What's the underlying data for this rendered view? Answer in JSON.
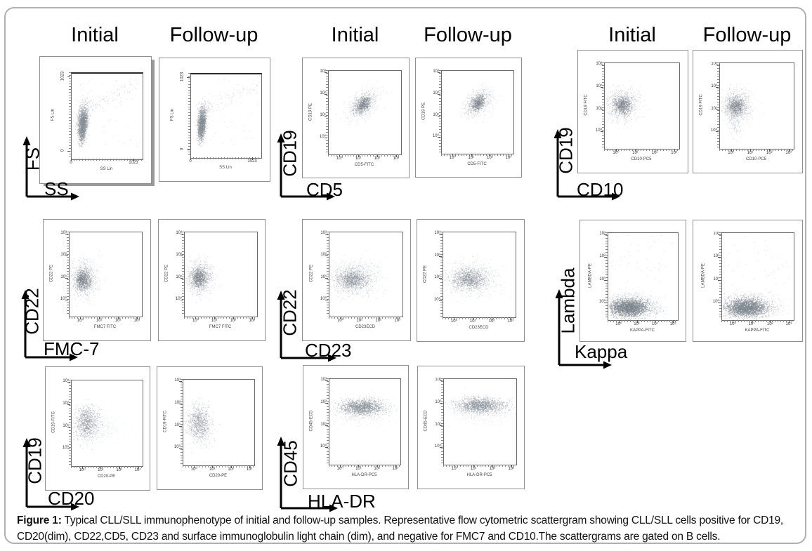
{
  "caption": {
    "label": "Figure 1:",
    "text": " Typical CLL/SLL immunophenotype of initial and follow-up samples. Representative flow cytometric scattergram showing CLL/SLL cells positive for CD19, CD20(dim), CD22,CD5, CD23 and surface immunoglobulin light chain (dim), and negative for FMC7 and CD10.The scattergrams are gated on B cells."
  },
  "column_headers": {
    "initial": "Initial",
    "followup": "Follow-up"
  },
  "colors": {
    "figure_border": "#b0b0b0",
    "plot_border": "#8f8f8f",
    "dot_gray": "#8a9199",
    "dense_gray": "#79818a",
    "text": "#000000"
  },
  "chart_data": [
    {
      "id": "fs-ss",
      "type": "scatter",
      "grid_row": 1,
      "grid_col": 1,
      "show_headers": true,
      "y_axis_label": "FS",
      "x_axis_label": "SS",
      "inner_y_label": "FS Lin",
      "inner_x_label": "SS Lin",
      "scale": "linear",
      "y_ticks": [
        "1023",
        "0"
      ],
      "x_ticks": [
        "0",
        "1023"
      ],
      "plots": [
        {
          "variant": "Initial",
          "seed": 101,
          "clusters": [
            {
              "type": "gauss",
              "cx": 0.155,
              "cy": 0.57,
              "sx": 0.032,
              "sy": 0.088,
              "rho": -0.25,
              "n": 1500,
              "color": "#848b93",
              "alpha": 0.5
            },
            {
              "type": "gauss",
              "cx": 0.14,
              "cy": 0.72,
              "sx": 0.026,
              "sy": 0.055,
              "rho": 0,
              "n": 260,
              "color": "#848b93",
              "alpha": 0.45
            },
            {
              "type": "gauss",
              "cx": 0.185,
              "cy": 0.42,
              "sx": 0.05,
              "sy": 0.065,
              "rho": -0.3,
              "n": 130,
              "color": "#98a0a8",
              "alpha": 0.4
            },
            {
              "type": "streak",
              "x1": 0.25,
              "y1": 0.4,
              "x2": 0.95,
              "y2": 0.1,
              "jitter": 0.045,
              "n": 85,
              "color": "#98a0a8",
              "alpha": 0.45
            },
            {
              "type": "uniform",
              "x1": 0.05,
              "y1": 0.05,
              "x2": 0.95,
              "y2": 0.85,
              "n": 55,
              "color": "#a7adb4",
              "alpha": 0.4
            }
          ]
        },
        {
          "variant": "Follow-up",
          "seed": 102,
          "clusters": [
            {
              "type": "gauss",
              "cx": 0.15,
              "cy": 0.57,
              "sx": 0.03,
              "sy": 0.085,
              "rho": -0.25,
              "n": 1300,
              "color": "#848b93",
              "alpha": 0.5
            },
            {
              "type": "gauss",
              "cx": 0.135,
              "cy": 0.71,
              "sx": 0.025,
              "sy": 0.05,
              "rho": 0,
              "n": 220,
              "color": "#848b93",
              "alpha": 0.45
            },
            {
              "type": "gauss",
              "cx": 0.18,
              "cy": 0.42,
              "sx": 0.05,
              "sy": 0.06,
              "rho": -0.3,
              "n": 110,
              "color": "#98a0a8",
              "alpha": 0.4
            },
            {
              "type": "streak",
              "x1": 0.25,
              "y1": 0.4,
              "x2": 0.95,
              "y2": 0.12,
              "jitter": 0.04,
              "n": 70,
              "color": "#9aa2aa",
              "alpha": 0.4
            },
            {
              "type": "uniform",
              "x1": 0.05,
              "y1": 0.05,
              "x2": 0.95,
              "y2": 0.85,
              "n": 45,
              "color": "#a7adb4",
              "alpha": 0.4
            }
          ]
        }
      ]
    },
    {
      "id": "cd19-cd5",
      "type": "scatter",
      "grid_row": 1,
      "grid_col": 2,
      "show_headers": true,
      "y_axis_label": "CD19",
      "x_axis_label": "CD5",
      "inner_y_label": "CD19 PE",
      "inner_x_label": "CD5-FITC",
      "scale": "log",
      "y_ticks": [
        "10³",
        "10²",
        "10¹",
        "10⁰"
      ],
      "x_ticks": [
        "10⁰",
        "10¹",
        "10²",
        "10³"
      ],
      "plots": [
        {
          "variant": "Initial",
          "seed": 201,
          "clusters": [
            {
              "type": "gauss",
              "cx": 0.47,
              "cy": 0.4,
              "sx": 0.1,
              "sy": 0.085,
              "rho": -0.45,
              "n": 750,
              "color": "#9aa1a9",
              "alpha": 0.33
            },
            {
              "type": "gauss",
              "cx": 0.47,
              "cy": 0.4,
              "sx": 0.055,
              "sy": 0.05,
              "rho": -0.45,
              "n": 600,
              "color": "#777f88",
              "alpha": 0.45
            }
          ]
        },
        {
          "variant": "Follow-up",
          "seed": 202,
          "clusters": [
            {
              "type": "gauss",
              "cx": 0.5,
              "cy": 0.385,
              "sx": 0.095,
              "sy": 0.08,
              "rho": -0.4,
              "n": 700,
              "color": "#9aa1a9",
              "alpha": 0.33
            },
            {
              "type": "gauss",
              "cx": 0.5,
              "cy": 0.385,
              "sx": 0.05,
              "sy": 0.048,
              "rho": -0.4,
              "n": 550,
              "color": "#777f88",
              "alpha": 0.45
            }
          ]
        }
      ]
    },
    {
      "id": "cd19-cd10",
      "type": "scatter",
      "grid_row": 1,
      "grid_col": 3,
      "show_headers": true,
      "y_axis_label": "CD19",
      "x_axis_label": "CD10",
      "inner_y_label": "CD19 FITC",
      "inner_x_label": "CD10-PC5",
      "scale": "log",
      "y_ticks": [
        "10³",
        "10²",
        "10¹",
        "10⁰"
      ],
      "x_ticks": [
        "10⁰",
        "10¹",
        "10²",
        "10³"
      ],
      "plots": [
        {
          "variant": "Initial",
          "seed": 301,
          "clusters": [
            {
              "type": "gauss",
              "cx": 0.24,
              "cy": 0.48,
              "sx": 0.105,
              "sy": 0.09,
              "rho": 0,
              "n": 950,
              "color": "#9aa1a9",
              "alpha": 0.36
            },
            {
              "type": "gauss",
              "cx": 0.23,
              "cy": 0.49,
              "sx": 0.06,
              "sy": 0.05,
              "rho": 0,
              "n": 620,
              "color": "#777f88",
              "alpha": 0.48
            }
          ]
        },
        {
          "variant": "Follow-up",
          "seed": 302,
          "clusters": [
            {
              "type": "gauss",
              "cx": 0.22,
              "cy": 0.5,
              "sx": 0.1,
              "sy": 0.095,
              "rho": 0,
              "n": 900,
              "color": "#9aa1a9",
              "alpha": 0.36
            },
            {
              "type": "gauss",
              "cx": 0.215,
              "cy": 0.5,
              "sx": 0.055,
              "sy": 0.05,
              "rho": 0,
              "n": 600,
              "color": "#777f88",
              "alpha": 0.48
            },
            {
              "type": "gauss",
              "cx": 0.2,
              "cy": 0.68,
              "sx": 0.04,
              "sy": 0.1,
              "rho": 0,
              "n": 140,
              "color": "#9aa1a9",
              "alpha": 0.35
            }
          ]
        }
      ]
    },
    {
      "id": "cd22-fmc7",
      "type": "scatter",
      "grid_row": 2,
      "grid_col": 1,
      "show_headers": false,
      "y_axis_label": "CD22",
      "x_axis_label": "FMC-7",
      "inner_y_label": "CD22 PE",
      "inner_x_label": "FMC7 FITC",
      "scale": "log",
      "y_ticks": [
        "10³",
        "10²",
        "10¹",
        "10⁰"
      ],
      "x_ticks": [
        "10⁰",
        "10¹",
        "10²",
        "10³"
      ],
      "plots": [
        {
          "variant": "Initial",
          "seed": 401,
          "clusters": [
            {
              "type": "gauss",
              "cx": 0.19,
              "cy": 0.55,
              "sx": 0.09,
              "sy": 0.105,
              "rho": 0,
              "n": 1000,
              "color": "#9aa1a9",
              "alpha": 0.38
            },
            {
              "type": "gauss",
              "cx": 0.18,
              "cy": 0.56,
              "sx": 0.05,
              "sy": 0.06,
              "rho": 0,
              "n": 650,
              "color": "#777f88",
              "alpha": 0.5
            }
          ]
        },
        {
          "variant": "Follow-up",
          "seed": 402,
          "clusters": [
            {
              "type": "gauss",
              "cx": 0.2,
              "cy": 0.53,
              "sx": 0.09,
              "sy": 0.1,
              "rho": 0,
              "n": 950,
              "color": "#9aa1a9",
              "alpha": 0.38
            },
            {
              "type": "gauss",
              "cx": 0.195,
              "cy": 0.54,
              "sx": 0.05,
              "sy": 0.055,
              "rho": 0,
              "n": 620,
              "color": "#777f88",
              "alpha": 0.5
            }
          ]
        }
      ]
    },
    {
      "id": "cd22-cd23",
      "type": "scatter",
      "grid_row": 2,
      "grid_col": 2,
      "show_headers": false,
      "y_axis_label": "CD22",
      "x_axis_label": "CD23",
      "inner_y_label": "CD22 PE",
      "inner_x_label": "CD23ECD",
      "scale": "log",
      "y_ticks": [
        "10³",
        "10²",
        "10¹",
        "10⁰"
      ],
      "x_ticks": [
        "10⁰",
        "10¹",
        "10²",
        "10³"
      ],
      "plots": [
        {
          "variant": "Initial",
          "seed": 501,
          "clusters": [
            {
              "type": "gauss",
              "cx": 0.33,
              "cy": 0.545,
              "sx": 0.175,
              "sy": 0.095,
              "rho": 0,
              "n": 1300,
              "color": "#9aa1a9",
              "alpha": 0.3
            },
            {
              "type": "gauss",
              "cx": 0.31,
              "cy": 0.555,
              "sx": 0.105,
              "sy": 0.055,
              "rho": 0,
              "n": 750,
              "color": "#7d848d",
              "alpha": 0.45
            }
          ]
        },
        {
          "variant": "Follow-up",
          "seed": 502,
          "clusters": [
            {
              "type": "gauss",
              "cx": 0.36,
              "cy": 0.54,
              "sx": 0.18,
              "sy": 0.09,
              "rho": 0,
              "n": 1250,
              "color": "#9aa1a9",
              "alpha": 0.3
            },
            {
              "type": "gauss",
              "cx": 0.35,
              "cy": 0.55,
              "sx": 0.11,
              "sy": 0.055,
              "rho": 0,
              "n": 700,
              "color": "#7d848d",
              "alpha": 0.45
            }
          ]
        }
      ]
    },
    {
      "id": "lambda-kappa",
      "type": "scatter",
      "grid_row": 2,
      "grid_col": 3,
      "show_headers": false,
      "y_axis_label": "Lambda",
      "x_axis_label": "Kappa",
      "inner_y_label": "LAMBDA-PE",
      "inner_x_label": "KAPPA-FITC",
      "scale": "log",
      "y_ticks": [
        "10³",
        "10²",
        "10¹",
        "10⁰"
      ],
      "x_ticks": [
        "10⁰",
        "10¹",
        "10²",
        "10³"
      ],
      "plots": [
        {
          "variant": "Initial",
          "seed": 601,
          "clusters": [
            {
              "type": "gauss",
              "cx": 0.295,
              "cy": 0.855,
              "sx": 0.135,
              "sy": 0.05,
              "rho": 0,
              "n": 2600,
              "color": "#79818a",
              "alpha": 0.55
            },
            {
              "type": "gauss",
              "cx": 0.3,
              "cy": 0.84,
              "sx": 0.21,
              "sy": 0.075,
              "rho": 0,
              "n": 800,
              "color": "#8b929a",
              "alpha": 0.28
            },
            {
              "type": "uniform",
              "x1": 0.05,
              "y1": 0.02,
              "x2": 0.95,
              "y2": 0.6,
              "n": 45,
              "color": "#9aa1a9",
              "alpha": 0.4
            },
            {
              "type": "gauss",
              "cx": 0.68,
              "cy": 0.87,
              "sx": 0.06,
              "sy": 0.035,
              "rho": 0,
              "n": 60,
              "color": "#9aa1a9",
              "alpha": 0.35
            }
          ]
        },
        {
          "variant": "Follow-up",
          "seed": 602,
          "clusters": [
            {
              "type": "gauss",
              "cx": 0.33,
              "cy": 0.855,
              "sx": 0.14,
              "sy": 0.05,
              "rho": 0,
              "n": 2500,
              "color": "#79818a",
              "alpha": 0.55
            },
            {
              "type": "gauss",
              "cx": 0.34,
              "cy": 0.84,
              "sx": 0.21,
              "sy": 0.075,
              "rho": 0,
              "n": 780,
              "color": "#8b929a",
              "alpha": 0.28
            },
            {
              "type": "uniform",
              "x1": 0.05,
              "y1": 0.02,
              "x2": 0.95,
              "y2": 0.6,
              "n": 40,
              "color": "#9aa1a9",
              "alpha": 0.4
            },
            {
              "type": "gauss",
              "cx": 0.72,
              "cy": 0.86,
              "sx": 0.06,
              "sy": 0.035,
              "rho": 0,
              "n": 55,
              "color": "#9aa1a9",
              "alpha": 0.35
            }
          ]
        }
      ]
    },
    {
      "id": "cd19-cd20",
      "type": "scatter",
      "grid_row": 3,
      "grid_col": 1,
      "show_headers": false,
      "y_axis_label": "CD19",
      "x_axis_label": "CD20",
      "inner_y_label": "CD19-FITC",
      "inner_x_label": "CD20-PE",
      "scale": "log",
      "y_ticks": [
        "10³",
        "10²",
        "10¹",
        "10⁰"
      ],
      "x_ticks": [
        "10⁰",
        "10¹",
        "10²",
        "10³"
      ],
      "plots": [
        {
          "variant": "Initial",
          "seed": 701,
          "clusters": [
            {
              "type": "gauss",
              "cx": 0.21,
              "cy": 0.49,
              "sx": 0.08,
              "sy": 0.095,
              "rho": 0,
              "n": 950,
              "color": "#89919a",
              "alpha": 0.45
            },
            {
              "type": "gauss",
              "cx": 0.36,
              "cy": 0.56,
              "sx": 0.16,
              "sy": 0.1,
              "rho": 0,
              "n": 320,
              "color": "#9aa1a9",
              "alpha": 0.2
            }
          ]
        },
        {
          "variant": "Follow-up",
          "seed": 702,
          "clusters": [
            {
              "type": "gauss",
              "cx": 0.22,
              "cy": 0.5,
              "sx": 0.075,
              "sy": 0.1,
              "rho": 0,
              "n": 850,
              "color": "#89919a",
              "alpha": 0.45
            },
            {
              "type": "gauss",
              "cx": 0.27,
              "cy": 0.58,
              "sx": 0.08,
              "sy": 0.09,
              "rho": 0,
              "n": 140,
              "color": "#9aa1a9",
              "alpha": 0.25
            }
          ]
        }
      ]
    },
    {
      "id": "cd45-hladr",
      "type": "scatter",
      "grid_row": 3,
      "grid_col": 2,
      "show_headers": false,
      "y_axis_label": "CD45",
      "x_axis_label": "HLA-DR",
      "inner_y_label": "CD45-ECD",
      "inner_x_label": "HLA-DR-PC5",
      "scale": "log",
      "y_ticks": [
        "10³",
        "10²",
        "10¹",
        "10⁰"
      ],
      "x_ticks": [
        "10⁰",
        "10¹",
        "10²",
        "10³"
      ],
      "plots": [
        {
          "variant": "Initial",
          "seed": 801,
          "clusters": [
            {
              "type": "gauss",
              "cx": 0.46,
              "cy": 0.325,
              "sx": 0.15,
              "sy": 0.045,
              "rho": 0,
              "n": 1500,
              "color": "#868d95",
              "alpha": 0.5
            },
            {
              "type": "gauss",
              "cx": 0.44,
              "cy": 0.37,
              "sx": 0.21,
              "sy": 0.08,
              "rho": 0,
              "n": 450,
              "color": "#9aa1a9",
              "alpha": 0.22
            }
          ]
        },
        {
          "variant": "Follow-up",
          "seed": 802,
          "clusters": [
            {
              "type": "gauss",
              "cx": 0.5,
              "cy": 0.305,
              "sx": 0.16,
              "sy": 0.042,
              "rho": 0,
              "n": 1400,
              "color": "#868d95",
              "alpha": 0.5
            },
            {
              "type": "gauss",
              "cx": 0.5,
              "cy": 0.36,
              "sx": 0.22,
              "sy": 0.08,
              "rho": 0,
              "n": 420,
              "color": "#9aa1a9",
              "alpha": 0.22
            }
          ]
        }
      ]
    }
  ]
}
